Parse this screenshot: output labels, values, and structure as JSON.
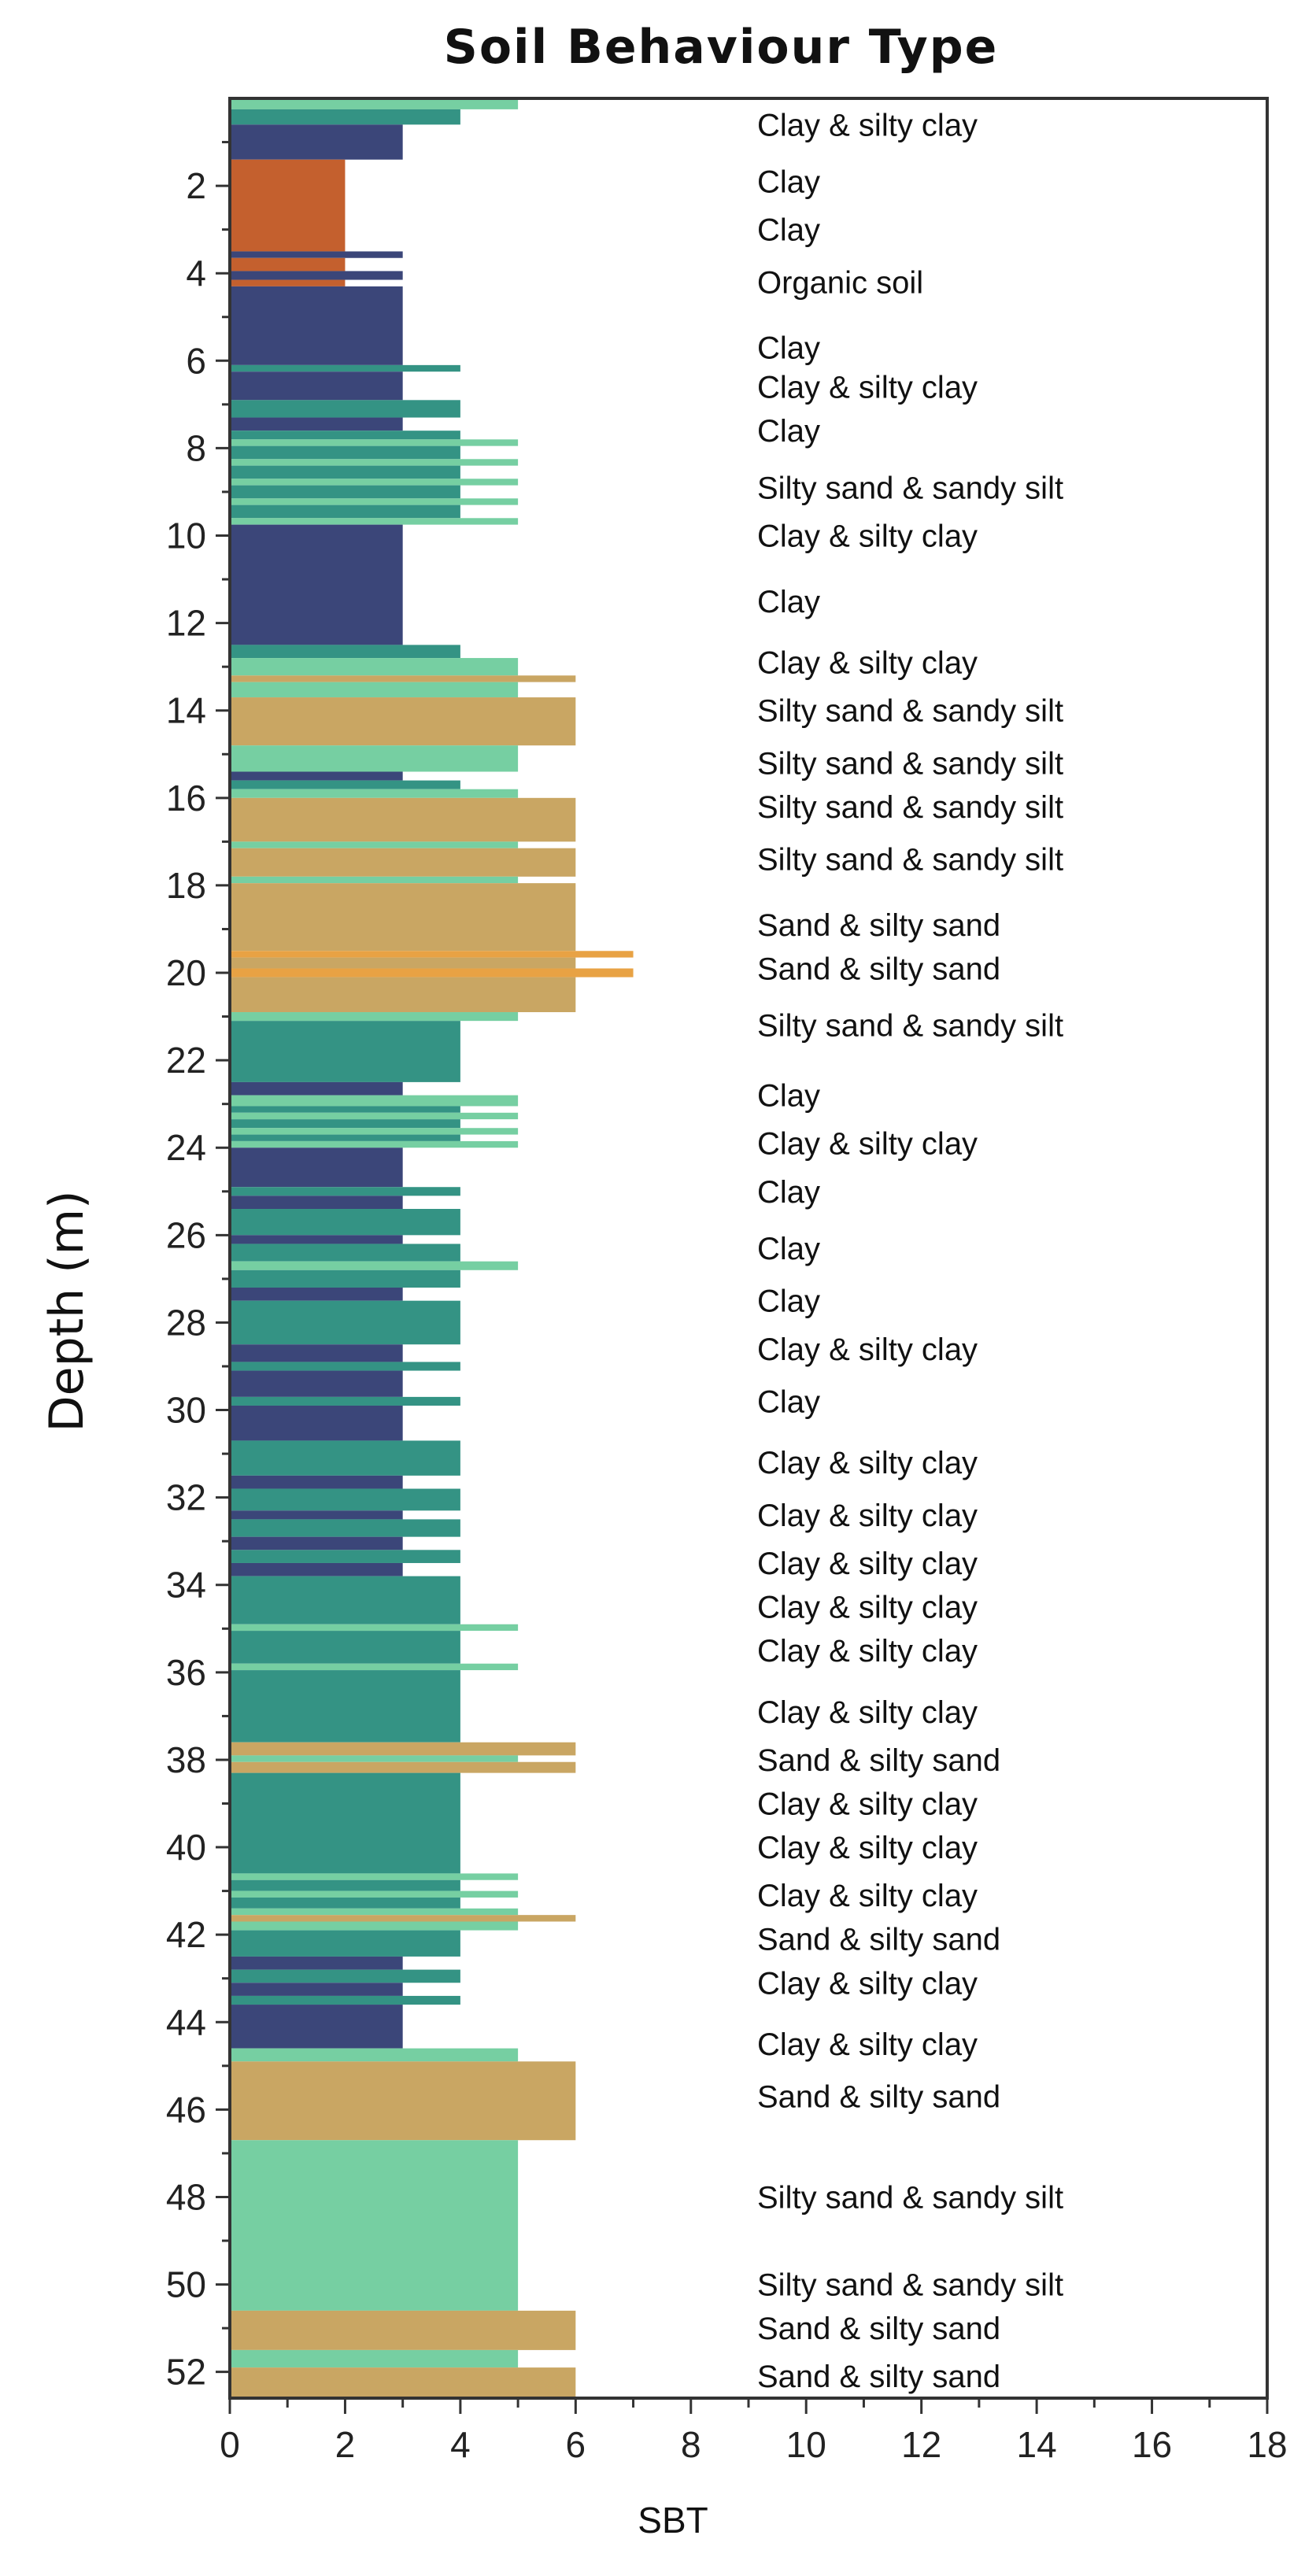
{
  "chart_data": {
    "type": "bar",
    "orientation": "horizontal",
    "title": "Soil Behaviour Type",
    "xlabel": "SBT",
    "ylabel": "Depth (m)",
    "xlim": [
      0,
      18
    ],
    "ylim": [
      52.6,
      0
    ],
    "x_ticks": [
      0,
      2,
      4,
      6,
      8,
      10,
      12,
      14,
      16,
      18
    ],
    "y_ticks": [
      2,
      4,
      6,
      8,
      10,
      12,
      14,
      16,
      18,
      20,
      22,
      24,
      26,
      28,
      30,
      32,
      34,
      36,
      38,
      40,
      42,
      44,
      46,
      48,
      50,
      52
    ],
    "colors": {
      "2": "#C4602E",
      "3": "#3B4679",
      "4": "#349384",
      "5": "#76CFA2",
      "6": "#C9A663",
      "7": "#E8A244"
    },
    "series": [
      {
        "top": 0.0,
        "bottom": 0.25,
        "sbt": 5
      },
      {
        "top": 0.25,
        "bottom": 0.6,
        "sbt": 4
      },
      {
        "top": 0.6,
        "bottom": 1.4,
        "sbt": 3
      },
      {
        "top": 1.4,
        "bottom": 3.5,
        "sbt": 2
      },
      {
        "top": 3.5,
        "bottom": 3.65,
        "sbt": 3
      },
      {
        "top": 3.65,
        "bottom": 3.95,
        "sbt": 2
      },
      {
        "top": 3.95,
        "bottom": 4.15,
        "sbt": 3
      },
      {
        "top": 4.15,
        "bottom": 4.3,
        "sbt": 2
      },
      {
        "top": 4.3,
        "bottom": 6.1,
        "sbt": 3
      },
      {
        "top": 6.1,
        "bottom": 6.25,
        "sbt": 4
      },
      {
        "top": 6.25,
        "bottom": 6.9,
        "sbt": 3
      },
      {
        "top": 6.9,
        "bottom": 7.3,
        "sbt": 4
      },
      {
        "top": 7.3,
        "bottom": 7.6,
        "sbt": 3
      },
      {
        "top": 7.6,
        "bottom": 7.8,
        "sbt": 4
      },
      {
        "top": 7.8,
        "bottom": 7.95,
        "sbt": 5
      },
      {
        "top": 7.95,
        "bottom": 8.25,
        "sbt": 4
      },
      {
        "top": 8.25,
        "bottom": 8.4,
        "sbt": 5
      },
      {
        "top": 8.4,
        "bottom": 8.7,
        "sbt": 4
      },
      {
        "top": 8.7,
        "bottom": 8.85,
        "sbt": 5
      },
      {
        "top": 8.85,
        "bottom": 9.15,
        "sbt": 4
      },
      {
        "top": 9.15,
        "bottom": 9.3,
        "sbt": 5
      },
      {
        "top": 9.3,
        "bottom": 9.6,
        "sbt": 4
      },
      {
        "top": 9.6,
        "bottom": 9.75,
        "sbt": 5
      },
      {
        "top": 9.75,
        "bottom": 12.5,
        "sbt": 3
      },
      {
        "top": 12.5,
        "bottom": 12.8,
        "sbt": 4
      },
      {
        "top": 12.8,
        "bottom": 13.2,
        "sbt": 5
      },
      {
        "top": 13.2,
        "bottom": 13.35,
        "sbt": 6
      },
      {
        "top": 13.35,
        "bottom": 13.7,
        "sbt": 5
      },
      {
        "top": 13.7,
        "bottom": 14.8,
        "sbt": 6
      },
      {
        "top": 14.8,
        "bottom": 15.4,
        "sbt": 5
      },
      {
        "top": 15.4,
        "bottom": 15.6,
        "sbt": 3
      },
      {
        "top": 15.6,
        "bottom": 15.8,
        "sbt": 4
      },
      {
        "top": 15.8,
        "bottom": 16.0,
        "sbt": 5
      },
      {
        "top": 16.0,
        "bottom": 17.0,
        "sbt": 6
      },
      {
        "top": 17.0,
        "bottom": 17.15,
        "sbt": 5
      },
      {
        "top": 17.15,
        "bottom": 17.8,
        "sbt": 6
      },
      {
        "top": 17.8,
        "bottom": 17.95,
        "sbt": 5
      },
      {
        "top": 17.95,
        "bottom": 19.5,
        "sbt": 6
      },
      {
        "top": 19.5,
        "bottom": 19.65,
        "sbt": 7
      },
      {
        "top": 19.65,
        "bottom": 19.9,
        "sbt": 6
      },
      {
        "top": 19.9,
        "bottom": 20.1,
        "sbt": 7
      },
      {
        "top": 20.1,
        "bottom": 20.9,
        "sbt": 6
      },
      {
        "top": 20.9,
        "bottom": 21.1,
        "sbt": 5
      },
      {
        "top": 21.1,
        "bottom": 22.5,
        "sbt": 4
      },
      {
        "top": 22.5,
        "bottom": 22.8,
        "sbt": 3
      },
      {
        "top": 22.8,
        "bottom": 23.05,
        "sbt": 5
      },
      {
        "top": 23.05,
        "bottom": 23.2,
        "sbt": 4
      },
      {
        "top": 23.2,
        "bottom": 23.35,
        "sbt": 5
      },
      {
        "top": 23.35,
        "bottom": 23.55,
        "sbt": 4
      },
      {
        "top": 23.55,
        "bottom": 23.7,
        "sbt": 5
      },
      {
        "top": 23.7,
        "bottom": 23.85,
        "sbt": 4
      },
      {
        "top": 23.85,
        "bottom": 24.0,
        "sbt": 5
      },
      {
        "top": 24.0,
        "bottom": 24.9,
        "sbt": 3
      },
      {
        "top": 24.9,
        "bottom": 25.1,
        "sbt": 4
      },
      {
        "top": 25.1,
        "bottom": 25.4,
        "sbt": 3
      },
      {
        "top": 25.4,
        "bottom": 26.0,
        "sbt": 4
      },
      {
        "top": 26.0,
        "bottom": 26.2,
        "sbt": 3
      },
      {
        "top": 26.2,
        "bottom": 26.6,
        "sbt": 4
      },
      {
        "top": 26.6,
        "bottom": 26.8,
        "sbt": 5
      },
      {
        "top": 26.8,
        "bottom": 27.2,
        "sbt": 4
      },
      {
        "top": 27.2,
        "bottom": 27.5,
        "sbt": 3
      },
      {
        "top": 27.5,
        "bottom": 28.5,
        "sbt": 4
      },
      {
        "top": 28.5,
        "bottom": 28.9,
        "sbt": 3
      },
      {
        "top": 28.9,
        "bottom": 29.1,
        "sbt": 4
      },
      {
        "top": 29.1,
        "bottom": 29.7,
        "sbt": 3
      },
      {
        "top": 29.7,
        "bottom": 29.9,
        "sbt": 4
      },
      {
        "top": 29.9,
        "bottom": 30.7,
        "sbt": 3
      },
      {
        "top": 30.7,
        "bottom": 31.5,
        "sbt": 4
      },
      {
        "top": 31.5,
        "bottom": 31.8,
        "sbt": 3
      },
      {
        "top": 31.8,
        "bottom": 32.3,
        "sbt": 4
      },
      {
        "top": 32.3,
        "bottom": 32.5,
        "sbt": 3
      },
      {
        "top": 32.5,
        "bottom": 32.9,
        "sbt": 4
      },
      {
        "top": 32.9,
        "bottom": 33.2,
        "sbt": 3
      },
      {
        "top": 33.2,
        "bottom": 33.5,
        "sbt": 4
      },
      {
        "top": 33.5,
        "bottom": 33.8,
        "sbt": 3
      },
      {
        "top": 33.8,
        "bottom": 34.9,
        "sbt": 4
      },
      {
        "top": 34.9,
        "bottom": 35.05,
        "sbt": 5
      },
      {
        "top": 35.05,
        "bottom": 35.8,
        "sbt": 4
      },
      {
        "top": 35.8,
        "bottom": 35.95,
        "sbt": 5
      },
      {
        "top": 35.95,
        "bottom": 37.6,
        "sbt": 4
      },
      {
        "top": 37.6,
        "bottom": 37.9,
        "sbt": 6
      },
      {
        "top": 37.9,
        "bottom": 38.05,
        "sbt": 5
      },
      {
        "top": 38.05,
        "bottom": 38.3,
        "sbt": 6
      },
      {
        "top": 38.3,
        "bottom": 40.6,
        "sbt": 4
      },
      {
        "top": 40.6,
        "bottom": 40.75,
        "sbt": 5
      },
      {
        "top": 40.75,
        "bottom": 41.0,
        "sbt": 4
      },
      {
        "top": 41.0,
        "bottom": 41.15,
        "sbt": 5
      },
      {
        "top": 41.15,
        "bottom": 41.4,
        "sbt": 4
      },
      {
        "top": 41.4,
        "bottom": 41.55,
        "sbt": 5
      },
      {
        "top": 41.55,
        "bottom": 41.7,
        "sbt": 6
      },
      {
        "top": 41.7,
        "bottom": 41.9,
        "sbt": 5
      },
      {
        "top": 41.9,
        "bottom": 42.5,
        "sbt": 4
      },
      {
        "top": 42.5,
        "bottom": 42.8,
        "sbt": 3
      },
      {
        "top": 42.8,
        "bottom": 43.1,
        "sbt": 4
      },
      {
        "top": 43.1,
        "bottom": 43.4,
        "sbt": 3
      },
      {
        "top": 43.4,
        "bottom": 43.6,
        "sbt": 4
      },
      {
        "top": 43.6,
        "bottom": 44.6,
        "sbt": 3
      },
      {
        "top": 44.6,
        "bottom": 44.9,
        "sbt": 5
      },
      {
        "top": 44.9,
        "bottom": 46.7,
        "sbt": 6
      },
      {
        "top": 46.7,
        "bottom": 50.6,
        "sbt": 5
      },
      {
        "top": 50.6,
        "bottom": 51.5,
        "sbt": 6
      },
      {
        "top": 51.5,
        "bottom": 51.9,
        "sbt": 5
      },
      {
        "top": 51.9,
        "bottom": 52.6,
        "sbt": 6
      }
    ],
    "annotations": [
      {
        "depth": 0.6,
        "text": "Clay & silty clay"
      },
      {
        "depth": 1.9,
        "text": "Clay"
      },
      {
        "depth": 3.0,
        "text": "Clay"
      },
      {
        "depth": 4.2,
        "text": "Organic soil"
      },
      {
        "depth": 5.7,
        "text": "Clay"
      },
      {
        "depth": 6.6,
        "text": "Clay & silty clay"
      },
      {
        "depth": 7.6,
        "text": "Clay"
      },
      {
        "depth": 8.9,
        "text": "Silty sand & sandy silt"
      },
      {
        "depth": 10.0,
        "text": "Clay & silty clay"
      },
      {
        "depth": 11.5,
        "text": "Clay"
      },
      {
        "depth": 12.9,
        "text": "Clay & silty clay"
      },
      {
        "depth": 14.0,
        "text": "Silty sand & sandy silt"
      },
      {
        "depth": 15.2,
        "text": "Silty sand & sandy silt"
      },
      {
        "depth": 16.2,
        "text": "Silty sand & sandy silt"
      },
      {
        "depth": 17.4,
        "text": "Silty sand & sandy silt"
      },
      {
        "depth": 18.9,
        "text": "Sand & silty sand"
      },
      {
        "depth": 19.9,
        "text": "Sand & silty sand"
      },
      {
        "depth": 21.2,
        "text": "Silty sand & sandy silt"
      },
      {
        "depth": 22.8,
        "text": "Clay"
      },
      {
        "depth": 23.9,
        "text": "Clay & silty clay"
      },
      {
        "depth": 25.0,
        "text": "Clay"
      },
      {
        "depth": 26.3,
        "text": "Clay"
      },
      {
        "depth": 27.5,
        "text": "Clay"
      },
      {
        "depth": 28.6,
        "text": "Clay & silty clay"
      },
      {
        "depth": 29.8,
        "text": "Clay"
      },
      {
        "depth": 31.2,
        "text": "Clay & silty clay"
      },
      {
        "depth": 32.4,
        "text": "Clay & silty clay"
      },
      {
        "depth": 33.5,
        "text": "Clay & silty clay"
      },
      {
        "depth": 34.5,
        "text": "Clay & silty clay"
      },
      {
        "depth": 35.5,
        "text": "Clay & silty clay"
      },
      {
        "depth": 36.9,
        "text": "Clay & silty clay"
      },
      {
        "depth": 38.0,
        "text": "Sand & silty sand"
      },
      {
        "depth": 39.0,
        "text": "Clay & silty clay"
      },
      {
        "depth": 40.0,
        "text": "Clay & silty clay"
      },
      {
        "depth": 41.1,
        "text": "Clay & silty clay"
      },
      {
        "depth": 42.1,
        "text": "Sand & silty sand"
      },
      {
        "depth": 43.1,
        "text": "Clay & silty clay"
      },
      {
        "depth": 44.5,
        "text": "Clay & silty clay"
      },
      {
        "depth": 45.7,
        "text": "Sand & silty sand"
      },
      {
        "depth": 48.0,
        "text": "Silty sand & sandy silt"
      },
      {
        "depth": 50.0,
        "text": "Silty sand & sandy silt"
      },
      {
        "depth": 51.0,
        "text": "Sand & silty sand"
      },
      {
        "depth": 52.1,
        "text": "Sand & silty sand"
      }
    ]
  }
}
